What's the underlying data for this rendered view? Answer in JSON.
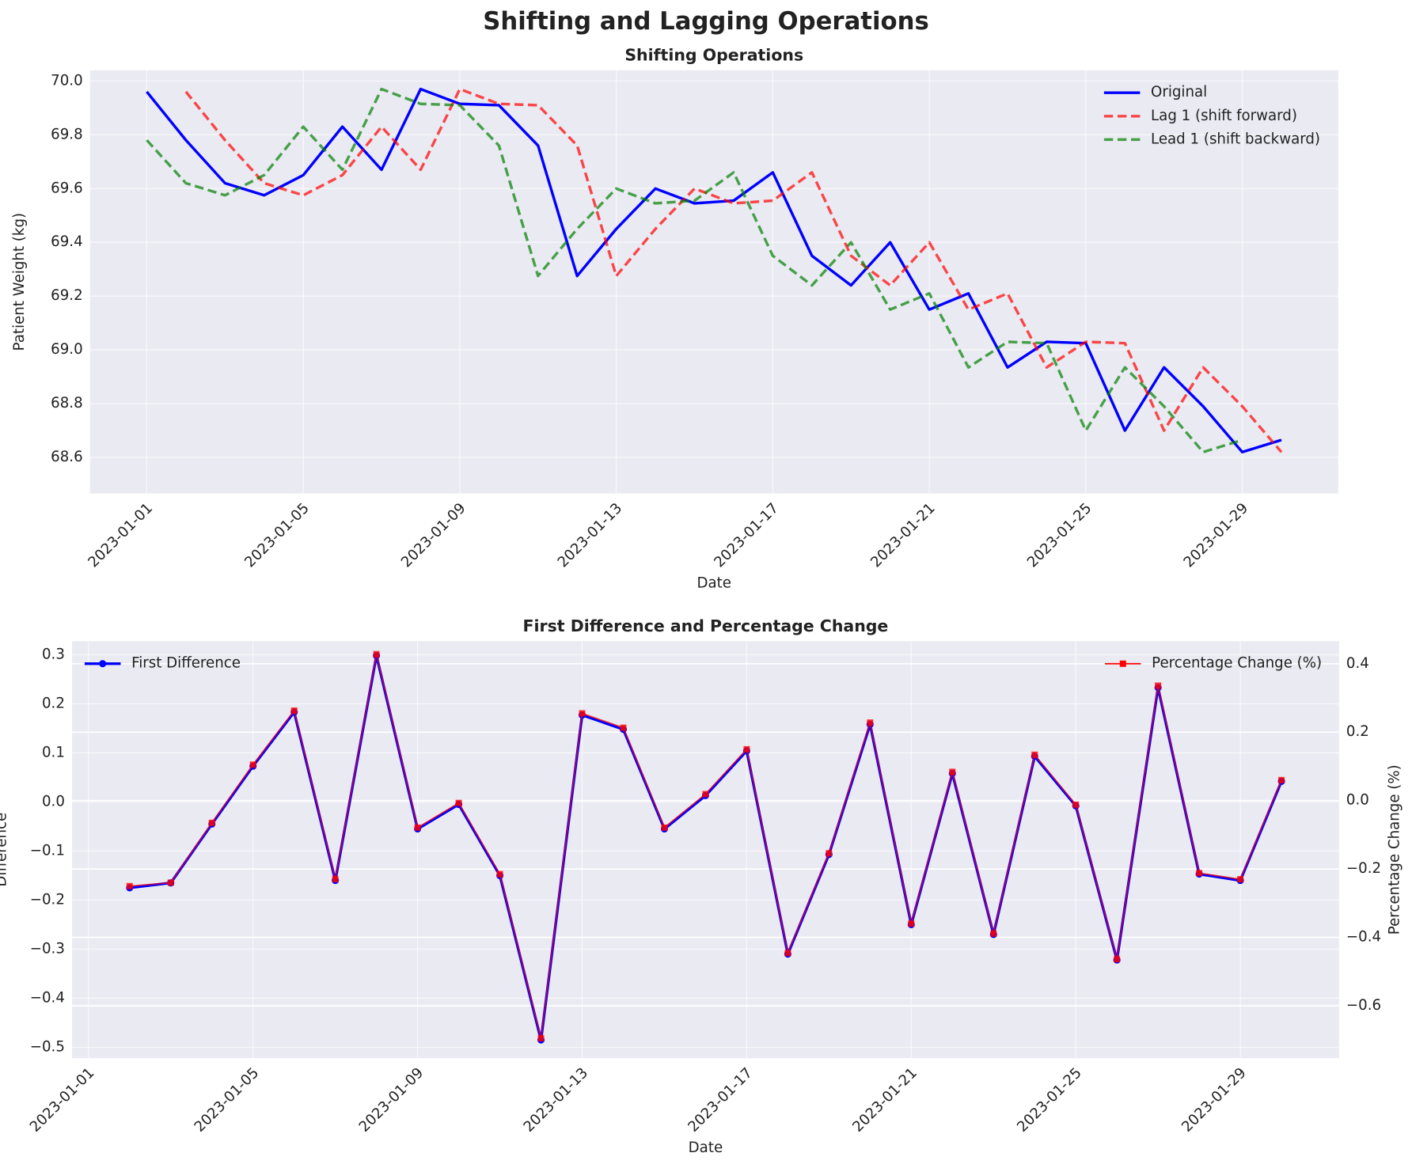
{
  "title": "Shifting and Lagging Operations",
  "chart_data": [
    {
      "type": "line",
      "title": "Shifting Operations",
      "xlabel": "Date",
      "ylabel": "Patient Weight (kg)",
      "x": [
        "2023-01-01",
        "2023-01-02",
        "2023-01-03",
        "2023-01-04",
        "2023-01-05",
        "2023-01-06",
        "2023-01-07",
        "2023-01-08",
        "2023-01-09",
        "2023-01-10",
        "2023-01-11",
        "2023-01-12",
        "2023-01-13",
        "2023-01-14",
        "2023-01-15",
        "2023-01-16",
        "2023-01-17",
        "2023-01-18",
        "2023-01-19",
        "2023-01-20",
        "2023-01-21",
        "2023-01-22",
        "2023-01-23",
        "2023-01-24",
        "2023-01-25",
        "2023-01-26",
        "2023-01-27",
        "2023-01-28",
        "2023-01-29",
        "2023-01-30"
      ],
      "series": [
        {
          "name": "Original",
          "color": "#0000ff",
          "linestyle": "solid",
          "values": [
            69.96,
            69.78,
            69.62,
            69.575,
            69.65,
            69.83,
            69.67,
            69.97,
            69.915,
            69.91,
            69.76,
            69.275,
            69.45,
            69.6,
            69.545,
            69.555,
            69.66,
            69.35,
            69.24,
            69.4,
            69.15,
            69.21,
            68.935,
            69.03,
            69.025,
            68.7,
            68.935,
            68.79,
            68.62,
            68.665
          ]
        },
        {
          "name": "Lag 1 (shift forward)",
          "color": "#ff0000",
          "linestyle": "dashed",
          "values": [
            null,
            69.96,
            69.78,
            69.62,
            69.575,
            69.65,
            69.83,
            69.67,
            69.97,
            69.915,
            69.91,
            69.76,
            69.275,
            69.45,
            69.6,
            69.545,
            69.555,
            69.66,
            69.35,
            69.24,
            69.4,
            69.15,
            69.21,
            68.935,
            69.03,
            69.025,
            68.7,
            68.935,
            68.79,
            68.62
          ]
        },
        {
          "name": "Lead 1 (shift backward)",
          "color": "#008000",
          "linestyle": "dashed",
          "values": [
            69.78,
            69.62,
            69.575,
            69.65,
            69.83,
            69.67,
            69.97,
            69.915,
            69.91,
            69.76,
            69.275,
            69.45,
            69.6,
            69.545,
            69.555,
            69.66,
            69.35,
            69.24,
            69.4,
            69.15,
            69.21,
            68.935,
            69.03,
            69.025,
            68.7,
            68.935,
            68.79,
            68.62,
            68.665,
            null
          ]
        }
      ],
      "xticks": [
        "2023-01-01",
        "2023-01-05",
        "2023-01-09",
        "2023-01-13",
        "2023-01-17",
        "2023-01-21",
        "2023-01-25",
        "2023-01-29"
      ],
      "ylim": [
        68.466,
        70.04
      ],
      "yticks": [
        68.6,
        68.8,
        {
          "value": 69.0,
          "label": "69.0"
        },
        69.2,
        69.4,
        69.6,
        69.8,
        {
          "value": 70.0,
          "label": "70.0"
        }
      ],
      "grid": true,
      "legend": "upper right"
    },
    {
      "type": "line",
      "title": "First Difference and Percentage Change",
      "xlabel": "Date",
      "ylabel": "Difference",
      "y2label": "Percentage Change (%)",
      "x": [
        "2023-01-01",
        "2023-01-02",
        "2023-01-03",
        "2023-01-04",
        "2023-01-05",
        "2023-01-06",
        "2023-01-07",
        "2023-01-08",
        "2023-01-09",
        "2023-01-10",
        "2023-01-11",
        "2023-01-12",
        "2023-01-13",
        "2023-01-14",
        "2023-01-15",
        "2023-01-16",
        "2023-01-17",
        "2023-01-18",
        "2023-01-19",
        "2023-01-20",
        "2023-01-21",
        "2023-01-22",
        "2023-01-23",
        "2023-01-24",
        "2023-01-25",
        "2023-01-26",
        "2023-01-27",
        "2023-01-28",
        "2023-01-29",
        "2023-01-30"
      ],
      "series": [
        {
          "name": "First Difference",
          "color": "#0000ff",
          "marker": "circle",
          "axis": "y",
          "values": [
            null,
            -0.175,
            -0.165,
            -0.045,
            0.073,
            0.183,
            -0.16,
            0.298,
            -0.055,
            -0.005,
            -0.15,
            -0.485,
            0.177,
            0.148,
            -0.055,
            0.013,
            0.104,
            -0.31,
            -0.107,
            0.158,
            -0.25,
            0.058,
            -0.27,
            0.093,
            -0.008,
            -0.322,
            0.233,
            -0.147,
            -0.16,
            0.042
          ]
        },
        {
          "name": "Percentage Change (%)",
          "color": "#ff0000",
          "marker": "square",
          "axis": "y2",
          "values": [
            null,
            -0.25,
            -0.24,
            -0.065,
            0.105,
            0.263,
            -0.23,
            0.428,
            -0.079,
            -0.007,
            -0.215,
            -0.695,
            0.255,
            0.213,
            -0.079,
            0.019,
            0.15,
            -0.446,
            -0.154,
            0.228,
            -0.36,
            0.084,
            -0.389,
            0.134,
            -0.012,
            -0.464,
            0.336,
            -0.212,
            -0.23,
            0.06
          ]
        }
      ],
      "xticks": [
        "2023-01-01",
        "2023-01-05",
        "2023-01-09",
        "2023-01-13",
        "2023-01-17",
        "2023-01-21",
        "2023-01-25",
        "2023-01-29"
      ],
      "ylim": [
        -0.522,
        0.3275
      ],
      "yticks": [
        {
          "value": -0.5,
          "label": "−0.5"
        },
        {
          "value": -0.4,
          "label": "−0.4"
        },
        {
          "value": -0.3,
          "label": "−0.3"
        },
        {
          "value": -0.2,
          "label": "−0.2"
        },
        {
          "value": -0.1,
          "label": "−0.1"
        },
        {
          "value": 0.0,
          "label": "0.0"
        },
        0.1,
        0.2,
        0.3
      ],
      "y2lim": [
        -0.753,
        0.466
      ],
      "y2ticks": [
        {
          "value": -0.6,
          "label": "−0.6"
        },
        {
          "value": -0.4,
          "label": "−0.4"
        },
        {
          "value": -0.2,
          "label": "−0.2"
        },
        {
          "value": 0.0,
          "label": "0.0"
        },
        0.2,
        0.4
      ],
      "grid": true,
      "legend": "upper left",
      "legend2": "upper right"
    }
  ]
}
